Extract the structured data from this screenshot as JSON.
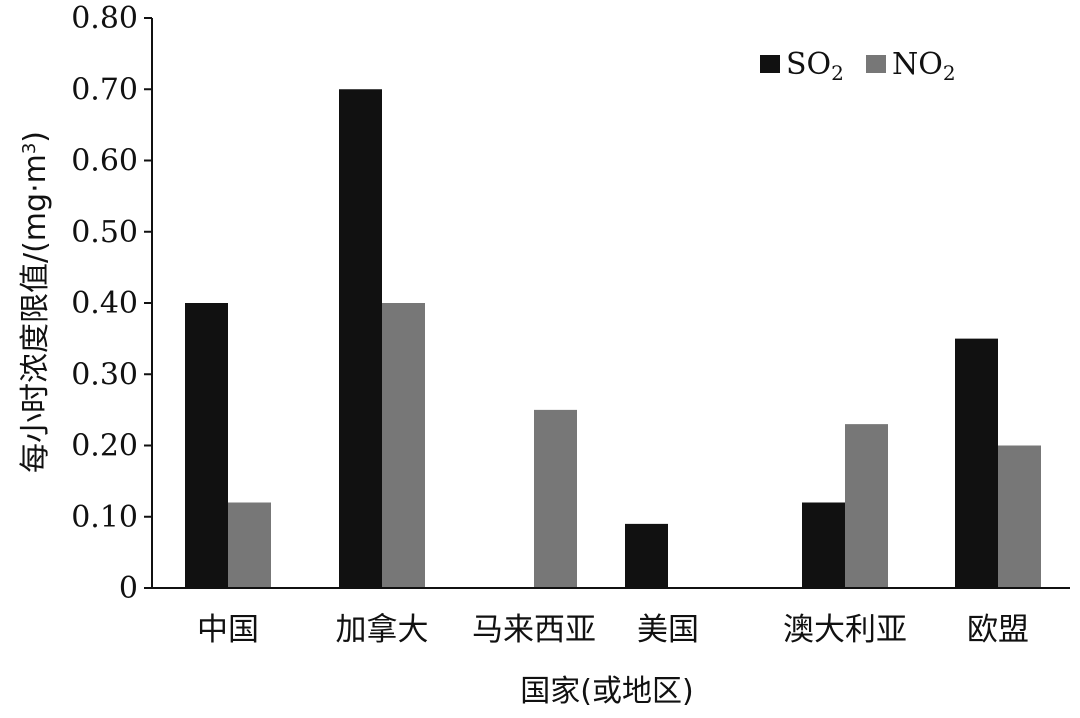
{
  "chart_data": {
    "type": "bar",
    "categories": [
      "中国",
      "加拿大",
      "马来西亚",
      "美国",
      "澳大利亚",
      "欧盟"
    ],
    "series": [
      {
        "name_main": "SO",
        "name_sub": "2",
        "color": "#111111",
        "values": [
          0.4,
          0.7,
          null,
          0.09,
          0.12,
          0.35
        ]
      },
      {
        "name_main": "NO",
        "name_sub": "2",
        "color": "#777777",
        "values": [
          0.12,
          0.4,
          0.25,
          null,
          0.23,
          0.2
        ]
      }
    ],
    "yticks": [
      "0",
      "0.10",
      "0.20",
      "0.30",
      "0.40",
      "0.50",
      "0.60",
      "0.70",
      "0.80"
    ],
    "ylim": [
      0,
      0.8
    ],
    "ylabel_main": "每小时浓度限值/(mg·m",
    "ylabel_sup": "3",
    "ylabel_end": ")",
    "xlabel": "国家(或地区)",
    "legend_position": "top-right",
    "grid": false
  }
}
